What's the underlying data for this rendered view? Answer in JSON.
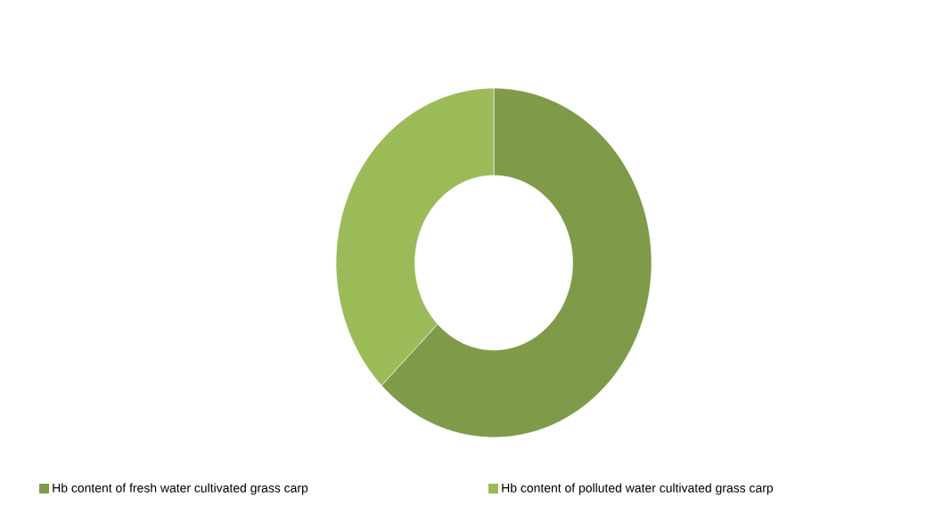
{
  "chart_data": {
    "type": "donut",
    "categories": [
      "Hb content of fresh water cultivated grass carp",
      "Hb content of polluted water cultivated grass carp"
    ],
    "values": [
      62.6,
      37.4
    ],
    "colors": [
      "#7f9a48",
      "#9bbb59"
    ],
    "legend": "bottom"
  }
}
